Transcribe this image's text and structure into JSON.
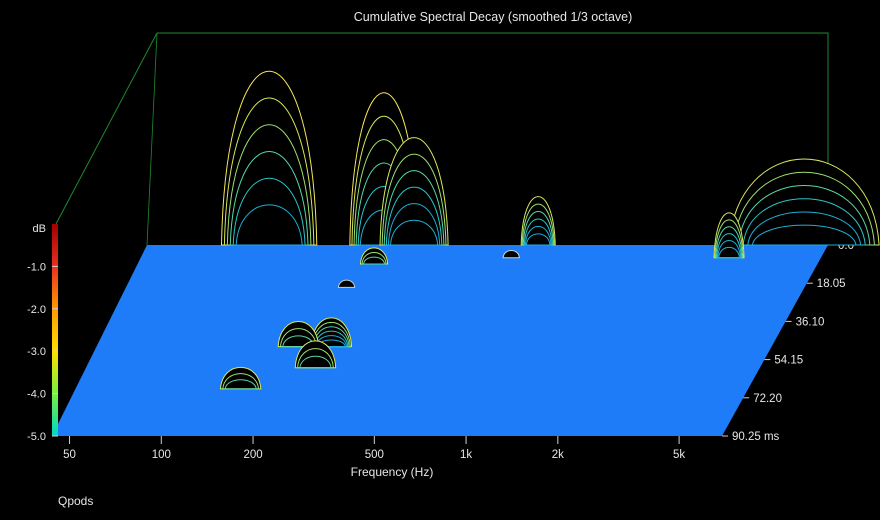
{
  "chart_data": {
    "type": "waterfall",
    "title": "Cumulative Spectral Decay (smoothed 1/3 octave)",
    "xlabel": "Frequency (Hz)",
    "ylabel": "dB",
    "zlabel_unit": "ms",
    "x_scale": "log",
    "x_tick_labels": [
      "50",
      "100",
      "200",
      "500",
      "1k",
      "2k",
      "5k"
    ],
    "x_tick_values": [
      50,
      100,
      200,
      500,
      1000,
      2000,
      5000
    ],
    "y_tick_labels": [
      "-1.0",
      "-2.0",
      "-3.0",
      "-4.0",
      "-5.0"
    ],
    "y_tick_values": [
      -1,
      -2,
      -3,
      -4,
      -5
    ],
    "z_tick_labels": [
      "0.0",
      "18.05",
      "36.10",
      "54.15",
      "72.20",
      "90.25 ms"
    ],
    "z_tick_values": [
      0,
      18.05,
      36.1,
      54.15,
      72.2,
      90.25
    ],
    "floor_color": "#1f7cf8",
    "colorbar": [
      "#a00000",
      "#e83020",
      "#ff9a00",
      "#ffe000",
      "#78f040",
      "#00d8c0"
    ],
    "peaks": [
      {
        "freq": 105,
        "time": 0,
        "height": 0.97,
        "width": 0.07
      },
      {
        "freq": 260,
        "time": 0,
        "height": 0.85,
        "width": 0.05
      },
      {
        "freq": 330,
        "time": 0,
        "height": 0.6,
        "width": 0.05
      },
      {
        "freq": 880,
        "time": 0,
        "height": 0.27,
        "width": 0.025
      },
      {
        "freq": 260,
        "time": 9,
        "height": 0.09,
        "width": 0.02
      },
      {
        "freq": 750,
        "time": 6,
        "height": 0.04,
        "width": 0.012
      },
      {
        "freq": 230,
        "time": 20,
        "height": 0.04,
        "width": 0.012
      },
      {
        "freq": 4200,
        "time": 6,
        "height": 0.25,
        "width": 0.022
      },
      {
        "freq": 7200,
        "time": 0,
        "height": 0.48,
        "width": 0.11
      },
      {
        "freq": 260,
        "time": 48,
        "height": 0.16,
        "width": 0.03
      },
      {
        "freq": 200,
        "time": 48,
        "height": 0.14,
        "width": 0.03
      },
      {
        "freq": 250,
        "time": 58,
        "height": 0.15,
        "width": 0.03
      },
      {
        "freq": 150,
        "time": 68,
        "height": 0.12,
        "width": 0.03
      }
    ]
  },
  "footer": {
    "brand": "Qpods"
  }
}
